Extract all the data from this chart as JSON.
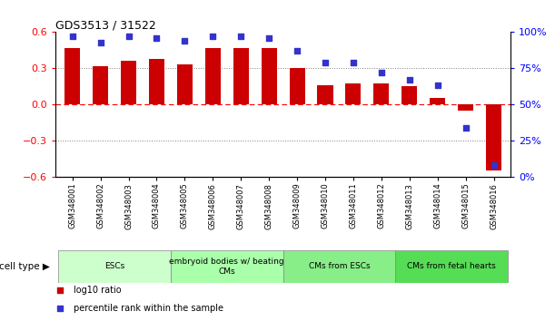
{
  "title": "GDS3513 / 31522",
  "samples": [
    "GSM348001",
    "GSM348002",
    "GSM348003",
    "GSM348004",
    "GSM348005",
    "GSM348006",
    "GSM348007",
    "GSM348008",
    "GSM348009",
    "GSM348010",
    "GSM348011",
    "GSM348012",
    "GSM348013",
    "GSM348014",
    "GSM348015",
    "GSM348016"
  ],
  "log10_ratio": [
    0.47,
    0.32,
    0.36,
    0.38,
    0.33,
    0.47,
    0.47,
    0.47,
    0.3,
    0.16,
    0.17,
    0.17,
    0.15,
    0.05,
    -0.05,
    -0.55
  ],
  "percentile_rank": [
    97,
    93,
    97,
    96,
    94,
    97,
    97,
    96,
    87,
    79,
    79,
    72,
    67,
    63,
    34,
    8
  ],
  "bar_color": "#cc0000",
  "dot_color": "#3333cc",
  "cell_type_groups": [
    {
      "label": "ESCs",
      "start": 0,
      "end": 3,
      "color": "#ccffcc"
    },
    {
      "label": "embryoid bodies w/ beating\nCMs",
      "start": 4,
      "end": 7,
      "color": "#aaffaa"
    },
    {
      "label": "CMs from ESCs",
      "start": 8,
      "end": 11,
      "color": "#88ee88"
    },
    {
      "label": "CMs from fetal hearts",
      "start": 12,
      "end": 15,
      "color": "#55dd55"
    }
  ],
  "ylim_left": [
    -0.6,
    0.6
  ],
  "ylim_right": [
    0,
    100
  ],
  "yticks_left": [
    -0.6,
    -0.3,
    0.0,
    0.3,
    0.6
  ],
  "yticks_right": [
    0,
    25,
    50,
    75,
    100
  ],
  "hline_dotted": [
    -0.3,
    0.3
  ],
  "hline_dashed": [
    0.0
  ],
  "background_color": "#ffffff",
  "legend_items": [
    {
      "color": "#cc0000",
      "label": "log10 ratio"
    },
    {
      "color": "#3333cc",
      "label": "percentile rank within the sample"
    }
  ]
}
